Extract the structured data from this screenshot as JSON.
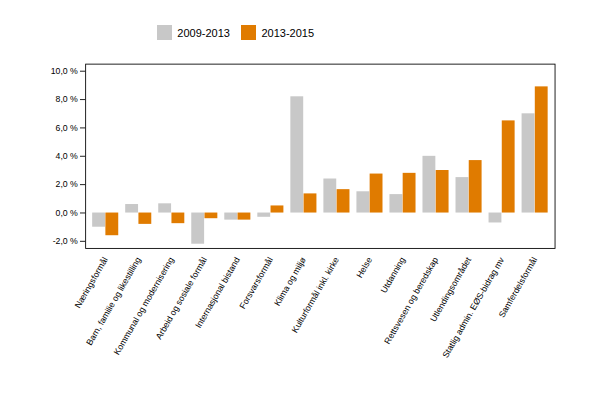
{
  "chart_data": {
    "type": "bar",
    "categories": [
      "Næringsformål",
      "Barn, familie og likestilling",
      "Kommunal og modernisering",
      "Arbeid og sosiale formål",
      "Internasjonal bistand",
      "Forsvarsformål",
      "Klima og miljø",
      "Kulturformål inkl. kirke",
      "Helse",
      "Utdanning",
      "Rettsvesen og beredskap",
      "Utlendingsområdet",
      "Statlig admin. EØS-bidrag mv",
      "Samferdelsformål"
    ],
    "series": [
      {
        "name": "2009-2013",
        "color": "#c8c8c8",
        "values": [
          -1.0,
          0.6,
          0.65,
          -2.2,
          -0.5,
          -0.3,
          8.2,
          2.4,
          1.5,
          1.3,
          4.0,
          2.5,
          -0.7,
          7.0
        ]
      },
      {
        "name": "2013-2015",
        "color": "#e07b00",
        "values": [
          -1.6,
          -0.8,
          -0.75,
          -0.4,
          -0.5,
          0.5,
          1.35,
          1.65,
          2.75,
          2.8,
          3.0,
          3.7,
          6.5,
          8.9
        ]
      }
    ],
    "ylim": [
      -2.5,
      10.5
    ],
    "yticks": [
      {
        "value": -2.0,
        "label": "-2,0 %"
      },
      {
        "value": 0.0,
        "label": "0,0 %"
      },
      {
        "value": 2.0,
        "label": "2,0 %"
      },
      {
        "value": 4.0,
        "label": "4,0 %"
      },
      {
        "value": 6.0,
        "label": "6,0 %"
      },
      {
        "value": 8.0,
        "label": "8,0 %"
      },
      {
        "value": 10.0,
        "label": "10,0 %"
      }
    ],
    "grid": false,
    "legend": "upper left"
  }
}
